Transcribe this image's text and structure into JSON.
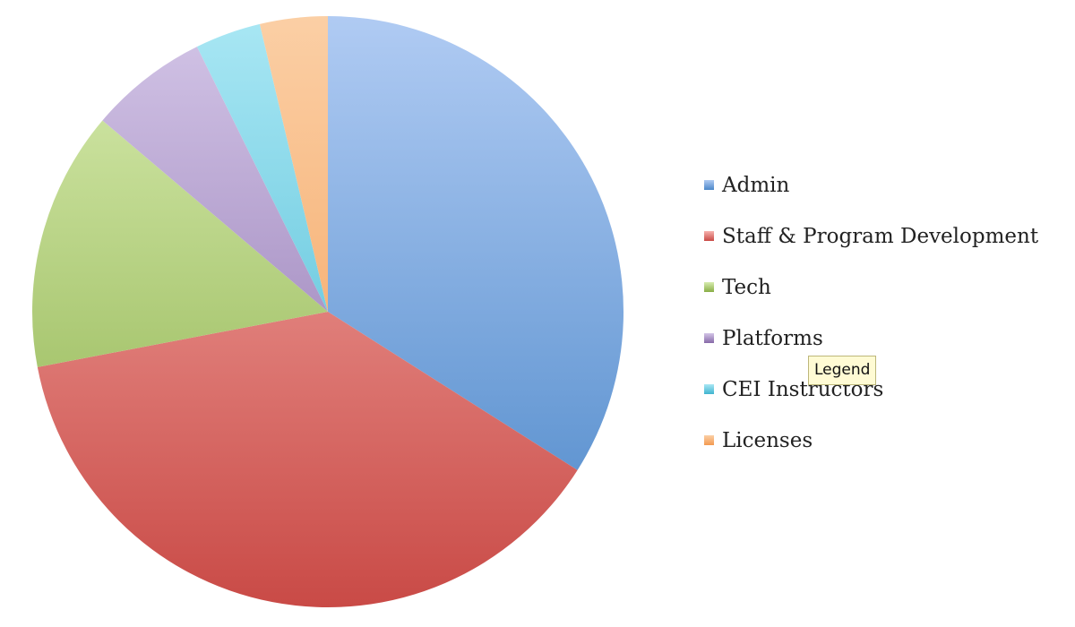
{
  "chart_data": {
    "type": "pie",
    "title": "",
    "start_angle_deg": 0,
    "direction": "clockwise",
    "legend_position": "right",
    "slices": [
      {
        "label": "Admin",
        "value": 34,
        "color": "#4a86c8",
        "color_light": "#b0cbf3"
      },
      {
        "label": "Staff & Program Development",
        "value": 38,
        "color": "#c94a46",
        "color_light": "#f7b3ae"
      },
      {
        "label": "Tech",
        "value": 14.2,
        "color": "#88ad45",
        "color_light": "#d8ecb0"
      },
      {
        "label": "Platforms",
        "value": 6.5,
        "color": "#8669a8",
        "color_light": "#d3c5e7"
      },
      {
        "label": "CEI Instructors",
        "value": 3.6,
        "color": "#3fb4cf",
        "color_light": "#a9e7f4"
      },
      {
        "label": "Licenses",
        "value": 3.7,
        "color": "#f39a50",
        "color_light": "#fbcfa5"
      }
    ]
  },
  "tooltip": {
    "text": "Legend"
  }
}
